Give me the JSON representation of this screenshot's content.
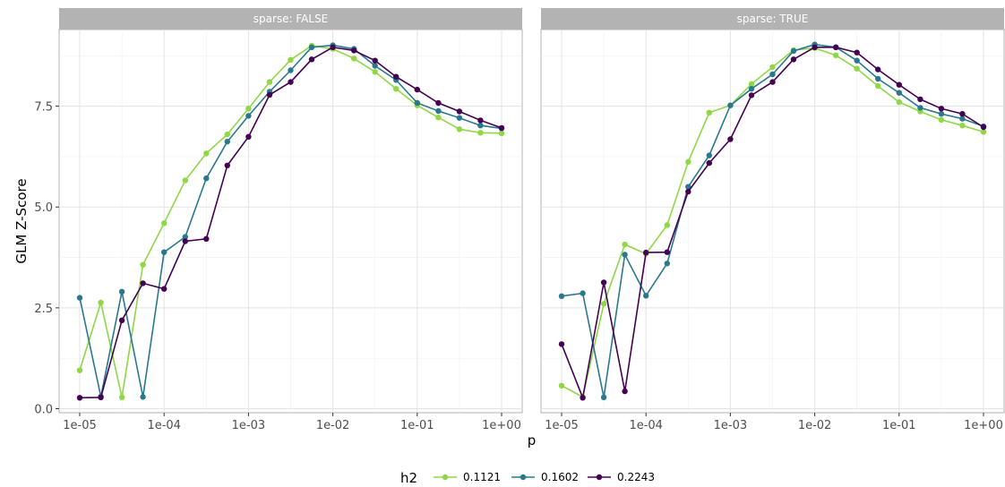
{
  "chart_data": {
    "type": "line",
    "xlabel": "p",
    "ylabel": "GLM Z-Score",
    "x_scale": "log10",
    "xlim": [
      1e-05,
      1
    ],
    "ylim": [
      -0.1,
      9.4
    ],
    "x_ticks": [
      1e-05,
      0.0001,
      0.001,
      0.01,
      0.1,
      1
    ],
    "x_tick_labels": [
      "1e-05",
      "1e-04",
      "1e-03",
      "1e-02",
      "1e-01",
      "1e+00"
    ],
    "y_ticks": [
      0,
      2.5,
      5,
      7.5
    ],
    "y_tick_labels": [
      "0.0",
      "2.5",
      "5.0",
      "7.5"
    ],
    "grid": true,
    "legend": {
      "title": "h2",
      "position": "bottom"
    },
    "x": [
      1e-05,
      1.78e-05,
      3.16e-05,
      5.62e-05,
      0.0001,
      0.000178,
      0.000316,
      0.000562,
      0.001,
      0.00178,
      0.00316,
      0.00562,
      0.01,
      0.0178,
      0.0316,
      0.0562,
      0.1,
      0.178,
      0.316,
      0.562,
      1
    ],
    "panels": [
      {
        "strip": "sparse: FALSE",
        "series": [
          {
            "name": "0.1121",
            "color": "#8fd744",
            "values": [
              0.95,
              2.63,
              0.28,
              3.57,
              4.6,
              5.66,
              6.33,
              6.8,
              7.44,
              8.1,
              8.65,
              9.0,
              8.92,
              8.68,
              8.35,
              7.93,
              7.52,
              7.22,
              6.93,
              6.84,
              6.83
            ]
          },
          {
            "name": "0.1602",
            "color": "#2a788e",
            "values": [
              2.75,
              0.3,
              2.9,
              0.29,
              3.88,
              4.26,
              5.71,
              6.62,
              7.26,
              7.86,
              8.39,
              8.96,
              9.01,
              8.92,
              8.5,
              8.15,
              7.58,
              7.38,
              7.21,
              7.02,
              6.95
            ]
          },
          {
            "name": "0.2243",
            "color": "#440154",
            "values": [
              0.27,
              0.28,
              2.19,
              3.11,
              2.97,
              4.15,
              4.21,
              6.03,
              6.74,
              7.78,
              8.1,
              8.66,
              8.96,
              8.88,
              8.63,
              8.23,
              7.91,
              7.58,
              7.37,
              7.15,
              6.96
            ]
          }
        ]
      },
      {
        "strip": "sparse: TRUE",
        "series": [
          {
            "name": "0.1121",
            "color": "#8fd744",
            "values": [
              0.57,
              0.29,
              2.6,
              4.07,
              3.84,
              4.55,
              6.12,
              7.34,
              7.52,
              8.05,
              8.47,
              8.89,
              8.94,
              8.76,
              8.43,
              8.0,
              7.6,
              7.37,
              7.16,
              7.02,
              6.86
            ]
          },
          {
            "name": "0.1602",
            "color": "#2a788e",
            "values": [
              2.79,
              2.86,
              0.28,
              3.82,
              2.8,
              3.6,
              5.5,
              6.28,
              7.52,
              7.93,
              8.29,
              8.87,
              9.03,
              8.96,
              8.63,
              8.18,
              7.83,
              7.46,
              7.31,
              7.19,
              7.0
            ]
          },
          {
            "name": "0.2243",
            "color": "#440154",
            "values": [
              1.6,
              0.27,
              3.13,
              0.43,
              3.87,
              3.88,
              5.38,
              6.09,
              6.68,
              7.77,
              8.1,
              8.66,
              8.96,
              8.96,
              8.83,
              8.41,
              8.03,
              7.67,
              7.44,
              7.31,
              6.98
            ]
          }
        ]
      }
    ]
  }
}
